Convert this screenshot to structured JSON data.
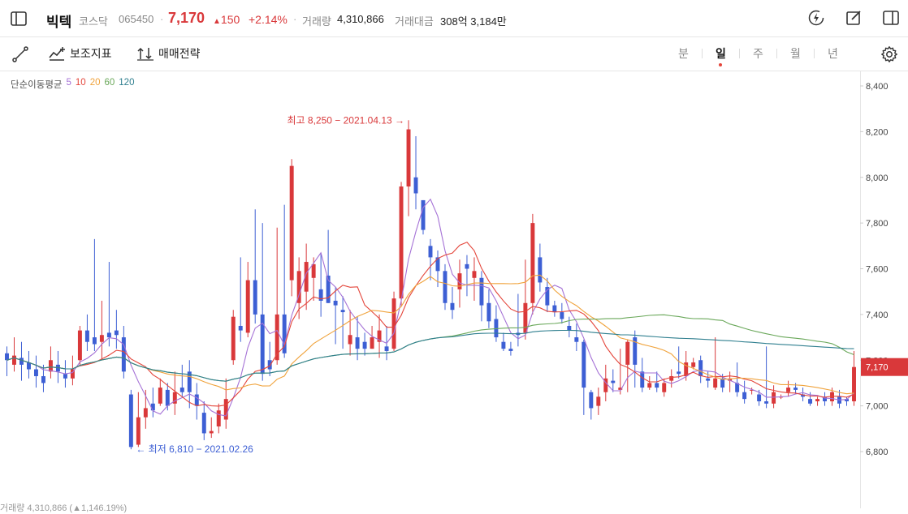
{
  "header": {
    "name": "빅텍",
    "market": "코스닥",
    "code": "065450",
    "price": "7,170",
    "change": "150",
    "change_rate": "+2.14%",
    "volume_label": "거래량",
    "volume": "4,310,866",
    "amount_label": "거래대금",
    "amount": "308억 3,184만",
    "icons": [
      "sidebar-icon",
      "lightning-icon",
      "edit-icon",
      "panel-icon"
    ]
  },
  "toolbar": {
    "draw_icon": "line-draw-icon",
    "indicators_label": "보조지표",
    "strategy_label": "매매전략",
    "periods": [
      "분",
      "일",
      "주",
      "월",
      "년"
    ],
    "active_period": "일",
    "settings_icon": "gear-icon"
  },
  "colors": {
    "up": "#d9383a",
    "down": "#3d5fd4",
    "ma5": "#a572d6",
    "ma10": "#e4453a",
    "ma20": "#f0a33c",
    "ma60": "#6aa85a",
    "ma120": "#2f7f8f"
  },
  "chart_data": {
    "type": "candlestick",
    "moving_average_legend": {
      "title": "단순이동평균",
      "periods": [
        "5",
        "10",
        "20",
        "60",
        "120"
      ]
    },
    "ylim": [
      6600,
      8450
    ],
    "y_ticks": [
      "8,400",
      "8,200",
      "8,000",
      "7,800",
      "7,600",
      "7,400",
      "7,200",
      "7,000",
      "6,800"
    ],
    "y_tick_values": [
      8400,
      8200,
      8000,
      7800,
      7600,
      7400,
      7200,
      7000,
      6800
    ],
    "current_price_label": "7,170",
    "current_price": 7170,
    "high_annotation": "최고 8,250 − 2021.04.13 →",
    "high_value": 8250,
    "low_annotation": "← 최저 6,810 − 2021.02.26",
    "low_value": 6810,
    "bottom_cut_text": "거래량  4,310,866 (▲1,146.19%)",
    "candles": [
      [
        7230,
        7200,
        7260,
        7130
      ],
      [
        7180,
        7220,
        7300,
        7150
      ],
      [
        7210,
        7180,
        7280,
        7110
      ],
      [
        7190,
        7160,
        7240,
        7120
      ],
      [
        7160,
        7130,
        7220,
        7080
      ],
      [
        7130,
        7100,
        7180,
        7060
      ],
      [
        7150,
        7200,
        7260,
        7120
      ],
      [
        7180,
        7150,
        7240,
        7100
      ],
      [
        7140,
        7120,
        7200,
        7080
      ],
      [
        7120,
        7160,
        7220,
        7090
      ],
      [
        7200,
        7330,
        7350,
        7180
      ],
      [
        7330,
        7280,
        7400,
        7240
      ],
      [
        7300,
        7270,
        7730,
        7240
      ],
      [
        7280,
        7310,
        7460,
        7200
      ],
      [
        7320,
        7300,
        7630,
        7260
      ],
      [
        7330,
        7310,
        7420,
        7250
      ],
      [
        7300,
        7150,
        7350,
        7120
      ],
      [
        7050,
        6820,
        7070,
        6810
      ],
      [
        6830,
        6950,
        7060,
        6820
      ],
      [
        6950,
        6990,
        7070,
        6900
      ],
      [
        7010,
        6980,
        7080,
        6950
      ],
      [
        7010,
        7080,
        7120,
        7000
      ],
      [
        7070,
        7000,
        7100,
        6980
      ],
      [
        7010,
        7060,
        7150,
        6960
      ],
      [
        7080,
        7060,
        7180,
        7040
      ],
      [
        7150,
        7060,
        7200,
        6990
      ],
      [
        7050,
        7000,
        7100,
        6940
      ],
      [
        6970,
        6880,
        7020,
        6850
      ],
      [
        6880,
        6890,
        6950,
        6860
      ],
      [
        6910,
        6980,
        7010,
        6880
      ],
      [
        6940,
        7030,
        7120,
        6900
      ],
      [
        7200,
        7390,
        7420,
        7180
      ],
      [
        7350,
        7330,
        7650,
        7280
      ],
      [
        7320,
        7550,
        7630,
        7300
      ],
      [
        7550,
        7400,
        7860,
        7360
      ],
      [
        7400,
        7140,
        7800,
        7110
      ],
      [
        7200,
        7160,
        7280,
        7130
      ],
      [
        7200,
        7400,
        7780,
        7180
      ],
      [
        7400,
        7230,
        7880,
        7210
      ],
      [
        7550,
        8050,
        8080,
        7480
      ],
      [
        7450,
        7590,
        7650,
        7380
      ],
      [
        7500,
        7630,
        7710,
        7420
      ],
      [
        7560,
        7620,
        7650,
        7460
      ],
      [
        7510,
        7460,
        7670,
        7390
      ],
      [
        7570,
        7450,
        7770,
        7450
      ],
      [
        7460,
        7440,
        7520,
        7270
      ],
      [
        7420,
        7410,
        7480,
        7250
      ],
      [
        7270,
        7310,
        7420,
        7220
      ],
      [
        7300,
        7250,
        7390,
        7200
      ],
      [
        7280,
        7250,
        7320,
        7220
      ],
      [
        7250,
        7300,
        7350,
        7250
      ],
      [
        7280,
        7330,
        7400,
        7210
      ],
      [
        7260,
        7240,
        7350,
        7200
      ],
      [
        7250,
        7470,
        7500,
        7240
      ],
      [
        7470,
        7960,
        7980,
        7440
      ],
      [
        7960,
        8210,
        8250,
        7830
      ],
      [
        8000,
        7930,
        8180,
        7860
      ],
      [
        7900,
        7770,
        7900,
        7750
      ],
      [
        7700,
        7650,
        7730,
        7550
      ],
      [
        7650,
        7590,
        7680,
        7520
      ],
      [
        7590,
        7450,
        7620,
        7420
      ],
      [
        7450,
        7420,
        7520,
        7380
      ],
      [
        7510,
        7580,
        7640,
        7430
      ],
      [
        7620,
        7600,
        7660,
        7480
      ],
      [
        7560,
        7590,
        7650,
        7460
      ],
      [
        7560,
        7440,
        7590,
        7370
      ],
      [
        7450,
        7370,
        7510,
        7340
      ],
      [
        7380,
        7300,
        7440,
        7280
      ],
      [
        7280,
        7250,
        7320,
        7240
      ],
      [
        7250,
        7240,
        7280,
        7220
      ],
      [
        7320,
        7310,
        7490,
        7260
      ],
      [
        7320,
        7450,
        7640,
        7290
      ],
      [
        7450,
        7800,
        7840,
        7400
      ],
      [
        7650,
        7540,
        7710,
        7500
      ],
      [
        7520,
        7440,
        7560,
        7410
      ],
      [
        7440,
        7410,
        7460,
        7390
      ],
      [
        7410,
        7380,
        7450,
        7360
      ],
      [
        7350,
        7330,
        7390,
        7300
      ],
      [
        7300,
        7280,
        7360,
        7240
      ],
      [
        7280,
        7080,
        7290,
        6960
      ],
      [
        7060,
        6990,
        7070,
        6940
      ],
      [
        7000,
        7040,
        7080,
        6960
      ],
      [
        7060,
        7120,
        7180,
        7020
      ],
      [
        7110,
        7100,
        7160,
        7060
      ],
      [
        7070,
        7080,
        7250,
        7050
      ],
      [
        7180,
        7280,
        7290,
        7060
      ],
      [
        7300,
        7180,
        7330,
        7080
      ],
      [
        7150,
        7080,
        7210,
        7060
      ],
      [
        7080,
        7100,
        7130,
        7070
      ],
      [
        7100,
        7080,
        7150,
        7060
      ],
      [
        7060,
        7100,
        7120,
        7040
      ],
      [
        7110,
        7130,
        7160,
        7080
      ],
      [
        7150,
        7140,
        7260,
        7120
      ],
      [
        7130,
        7190,
        7240,
        7110
      ],
      [
        7170,
        7190,
        7210,
        7160
      ],
      [
        7200,
        7130,
        7220,
        7100
      ],
      [
        7120,
        7110,
        7150,
        7080
      ],
      [
        7080,
        7120,
        7300,
        7070
      ],
      [
        7120,
        7080,
        7140,
        7060
      ],
      [
        7110,
        7120,
        7150,
        7060
      ],
      [
        7100,
        7060,
        7190,
        7040
      ],
      [
        7060,
        7030,
        7110,
        7010
      ],
      [
        7070,
        7070,
        7080,
        7050
      ],
      [
        7050,
        7020,
        7070,
        7000
      ],
      [
        7020,
        7010,
        7260,
        6990
      ],
      [
        7010,
        7060,
        7090,
        6990
      ],
      [
        7040,
        7040,
        7050,
        7030
      ],
      [
        7060,
        7080,
        7110,
        7040
      ],
      [
        7080,
        7070,
        7100,
        7050
      ],
      [
        7050,
        7040,
        7080,
        7020
      ],
      [
        7030,
        7010,
        7060,
        7000
      ],
      [
        7020,
        7030,
        7040,
        7000
      ],
      [
        7040,
        7020,
        7060,
        7000
      ],
      [
        7020,
        7060,
        7080,
        7000
      ],
      [
        7040,
        7010,
        7070,
        6990
      ],
      [
        7030,
        7020,
        7040,
        7000
      ],
      [
        7020,
        7170,
        7240,
        7000
      ]
    ]
  }
}
